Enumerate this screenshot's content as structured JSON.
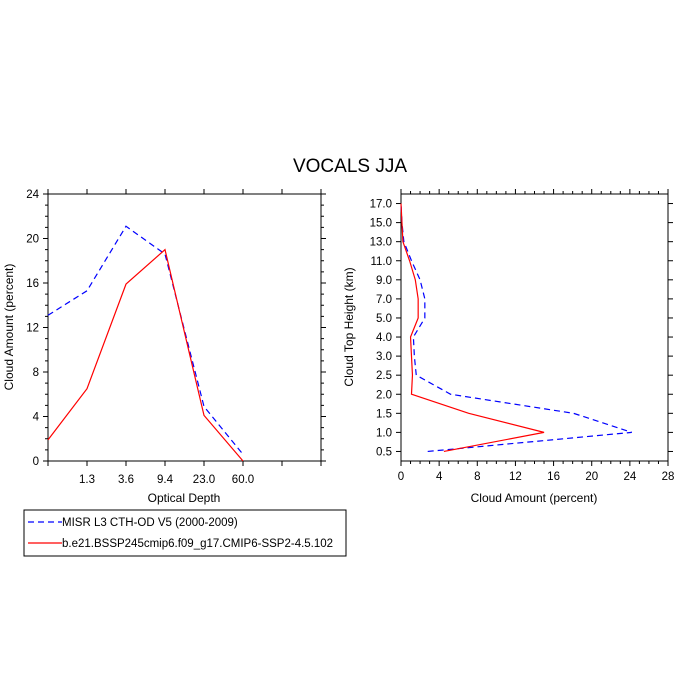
{
  "title": "VOCALS JJA",
  "legend": [
    {
      "label": "MISR L3 CTH-OD V5 (2000-2009)",
      "color": "#0000ff",
      "dash": "dashed"
    },
    {
      "label": "b.e21.BSSP245cmip6.f09_g17.CMIP6-SSP2-4.5.102",
      "color": "#ff0000",
      "dash": "solid"
    }
  ],
  "chart_data": [
    {
      "type": "line",
      "xlabel": "Optical Depth",
      "ylabel": "Cloud Amount (percent)",
      "x_tick_labels": [
        "1.3",
        "3.6",
        "9.4",
        "23.0",
        "60.0"
      ],
      "y_tick_labels": [
        "0",
        "4",
        "8",
        "12",
        "16",
        "20",
        "24"
      ],
      "ylim": [
        0,
        24
      ],
      "x_bin_index_range": [
        0,
        7
      ],
      "series": [
        {
          "name": "MISR L3 CTH-OD V5 (2000-2009)",
          "x": [
            0,
            1,
            2,
            3,
            4,
            5,
            6
          ],
          "values": [
            13.1,
            15.3,
            21.1,
            18.6,
            4.9,
            0.6,
            null
          ]
        },
        {
          "name": "b.e21.BSSP245cmip6.f09_g17.CMIP6-SSP2-4.5.102",
          "x": [
            0,
            1,
            2,
            3,
            4,
            5,
            6
          ],
          "values": [
            1.9,
            6.5,
            15.9,
            19.0,
            4.1,
            0.0,
            null
          ]
        }
      ]
    },
    {
      "type": "line",
      "orientation": "horizontal",
      "xlabel": "Cloud Amount (percent)",
      "ylabel": "Cloud Top Height (km)",
      "x_tick_labels": [
        "0",
        "4",
        "8",
        "12",
        "16",
        "20",
        "24",
        "28"
      ],
      "xlim": [
        0,
        28
      ],
      "y_tick_labels": [
        "0.5",
        "1.0",
        "1.5",
        "2.0",
        "2.5",
        "3.0",
        "4.0",
        "5.0",
        "7.0",
        "9.0",
        "11.0",
        "13.0",
        "15.0",
        "17.0"
      ],
      "series": [
        {
          "name": "MISR L3 CTH-OD V5 (2000-2009)",
          "y": [
            0.5,
            1.0,
            1.5,
            2.0,
            2.5,
            3.0,
            4.0,
            5.0,
            7.0,
            9.0,
            11.0,
            13.0,
            15.0,
            17.0
          ],
          "values": [
            2.8,
            24.2,
            18.1,
            5.2,
            1.6,
            1.4,
            1.3,
            2.5,
            2.5,
            2.0,
            1.1,
            0.3,
            0.1,
            0.0
          ]
        },
        {
          "name": "b.e21.BSSP245cmip6.f09_g17.CMIP6-SSP2-4.5.102",
          "y": [
            0.5,
            1.0,
            1.5,
            2.0,
            2.5,
            3.0,
            4.0,
            5.0,
            7.0,
            9.0,
            11.0,
            13.0,
            15.0,
            17.0
          ],
          "values": [
            4.5,
            15.0,
            7.1,
            1.1,
            1.2,
            1.1,
            1.0,
            1.8,
            1.8,
            1.5,
            0.9,
            0.2,
            0.1,
            0.0
          ]
        }
      ]
    }
  ]
}
